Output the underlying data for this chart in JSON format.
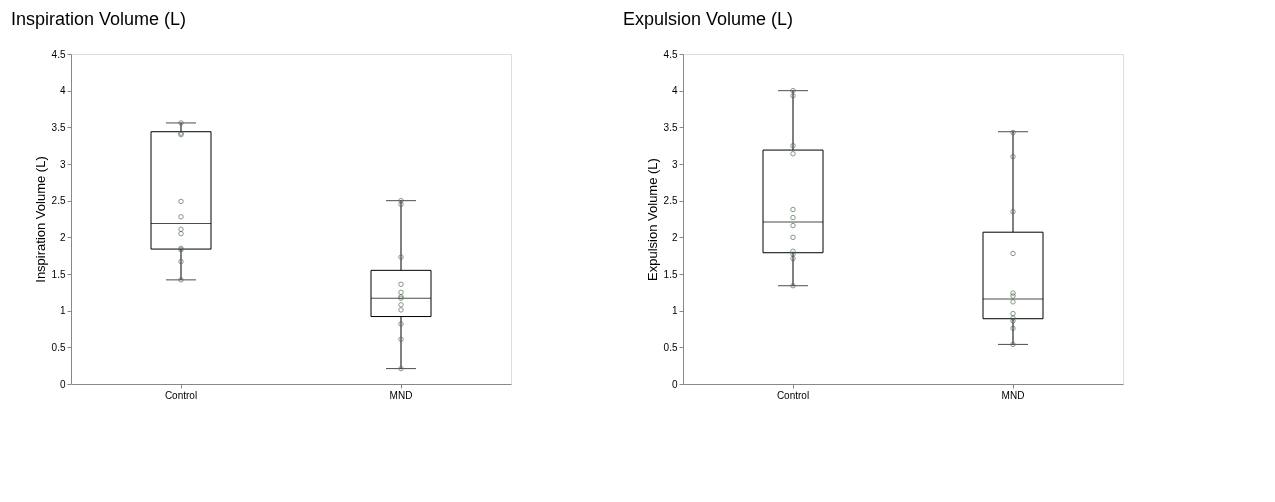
{
  "chart_data": [
    {
      "type": "box",
      "title": "Inspiration Volume (L)",
      "ylabel": "Inspiration Volume (L)",
      "categories": [
        "Control",
        "MND"
      ],
      "color": "#000000",
      "boxes": [
        {
          "low": 1.42,
          "q1": 1.84,
          "median": 2.19,
          "q3": 3.44,
          "high": 3.56
        },
        {
          "low": 0.21,
          "q1": 0.92,
          "median": 1.17,
          "q3": 1.55,
          "high": 2.5
        }
      ],
      "series": [
        {
          "type": "scatter",
          "color": "#4f6b4f",
          "x": [
            "Control",
            "Control",
            "Control",
            "Control",
            "Control",
            "Control",
            "Control",
            "Control",
            "Control",
            "Control",
            "Control"
          ],
          "values": [
            3.56,
            3.42,
            3.4,
            2.49,
            2.28,
            2.11,
            2.05,
            1.85,
            1.83,
            1.67,
            1.42
          ]
        },
        {
          "type": "scatter",
          "color": "#4f6b4f",
          "x": [
            "MND",
            "MND",
            "MND",
            "MND",
            "MND",
            "MND",
            "MND",
            "MND",
            "MND",
            "MND",
            "MND",
            "MND"
          ],
          "values": [
            2.5,
            2.45,
            1.73,
            1.36,
            1.25,
            1.19,
            1.17,
            1.08,
            1.01,
            0.82,
            0.61,
            0.21
          ]
        }
      ],
      "ylim": [
        0,
        4.5
      ],
      "yticks": [
        0,
        0.5,
        1,
        1.5,
        2,
        2.5,
        3,
        3.5,
        4,
        4.5
      ],
      "grid": false,
      "legend": false,
      "marker": "circle"
    },
    {
      "type": "box",
      "title": "Expulsion Volume (L)",
      "ylabel": "Expulsion Volume (L)",
      "categories": [
        "Control",
        "MND"
      ],
      "color": "#000000",
      "boxes": [
        {
          "low": 1.34,
          "q1": 1.79,
          "median": 2.21,
          "q3": 3.19,
          "high": 4.0
        },
        {
          "low": 0.54,
          "q1": 0.89,
          "median": 1.16,
          "q3": 2.07,
          "high": 3.44
        }
      ],
      "series": [
        {
          "type": "scatter",
          "color": "#4f6b4f",
          "x": [
            "Control",
            "Control",
            "Control",
            "Control",
            "Control",
            "Control",
            "Control",
            "Control",
            "Control",
            "Control",
            "Control",
            "Control"
          ],
          "values": [
            4.0,
            3.93,
            3.25,
            3.14,
            2.38,
            2.27,
            2.16,
            2.0,
            1.81,
            1.77,
            1.71,
            1.34
          ]
        },
        {
          "type": "scatter",
          "color": "#4f6b4f",
          "x": [
            "MND",
            "MND",
            "MND",
            "MND",
            "MND",
            "MND",
            "MND",
            "MND",
            "MND",
            "MND",
            "MND",
            "MND"
          ],
          "values": [
            3.43,
            3.1,
            2.35,
            1.78,
            1.24,
            1.2,
            1.12,
            0.96,
            0.9,
            0.86,
            0.76,
            0.54
          ]
        }
      ],
      "ylim": [
        0,
        4.5
      ],
      "yticks": [
        0,
        0.5,
        1,
        1.5,
        2,
        2.5,
        3,
        3.5,
        4,
        4.5
      ],
      "grid": false,
      "legend": false,
      "marker": "circle"
    }
  ]
}
